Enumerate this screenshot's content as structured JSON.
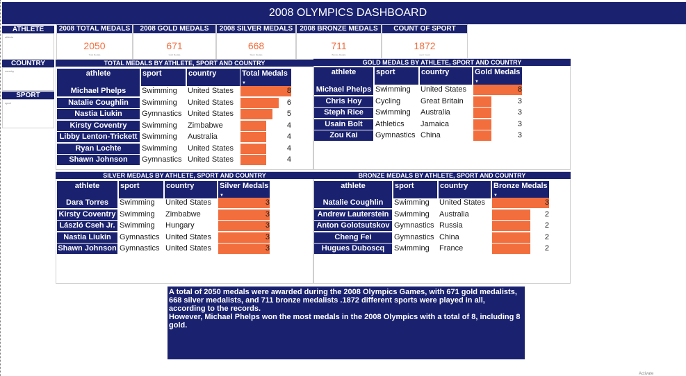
{
  "title": "2008 OLYMPICS DASHBOARD",
  "slicers": {
    "athlete": "ATHLETE",
    "country": "COUNTRY",
    "sport": "SPORT",
    "placeholder": "athlete",
    "country_placeholder": "country",
    "sport_placeholder": "sport"
  },
  "kpis": [
    {
      "label": "2008 TOTAL MEDALS",
      "value": "2050",
      "sub": "Total Medals"
    },
    {
      "label": "2008 GOLD MEDALS",
      "value": "671",
      "sub": "Gold Medals"
    },
    {
      "label": "2008 SILVER MEDALS",
      "value": "668",
      "sub": "Silver Medals"
    },
    {
      "label": "2008 BRONZE MEDALS",
      "value": "711",
      "sub": "Bronze Medals"
    },
    {
      "label": "COUNT OF SPORT",
      "value": "1872",
      "sub": "sport Count"
    }
  ],
  "tables": [
    {
      "title": "TOTAL MEDALS BY ATHLETE, SPORT AND COUNTRY",
      "columns": [
        "athlete",
        "sport",
        "country",
        "Total Medals"
      ],
      "rows": [
        {
          "athlete": "Michael Phelps",
          "sport": "Swimming",
          "country": "United States",
          "value": 8
        },
        {
          "athlete": "Natalie Coughlin",
          "sport": "Swimming",
          "country": "United States",
          "value": 6
        },
        {
          "athlete": "Nastia Liukin",
          "sport": "Gymnastics",
          "country": "United States",
          "value": 5
        },
        {
          "athlete": "Kirsty Coventry",
          "sport": "Swimming",
          "country": "Zimbabwe",
          "value": 4
        },
        {
          "athlete": "Libby Lenton-Trickett",
          "sport": "Swimming",
          "country": "Australia",
          "value": 4
        },
        {
          "athlete": "Ryan Lochte",
          "sport": "Swimming",
          "country": "United States",
          "value": 4
        },
        {
          "athlete": "Shawn Johnson",
          "sport": "Gymnastics",
          "country": "United States",
          "value": 4
        }
      ],
      "max": 8
    },
    {
      "title": "GOLD MEDALS BY ATHLETE, SPORT AND COUNTRY",
      "columns": [
        "athlete",
        "sport",
        "country",
        "Gold Medals"
      ],
      "rows": [
        {
          "athlete": "Michael Phelps",
          "sport": "Swimming",
          "country": "United States",
          "value": 8
        },
        {
          "athlete": "Chris Hoy",
          "sport": "Cycling",
          "country": "Great Britain",
          "value": 3
        },
        {
          "athlete": "Steph Rice",
          "sport": "Swimming",
          "country": "Australia",
          "value": 3
        },
        {
          "athlete": "Usain Bolt",
          "sport": "Athletics",
          "country": "Jamaica",
          "value": 3
        },
        {
          "athlete": "Zou Kai",
          "sport": "Gymnastics",
          "country": "China",
          "value": 3
        }
      ],
      "max": 8
    },
    {
      "title": "SILVER MEDALS BY ATHLETE, SPORT AND COUNTRY",
      "columns": [
        "athlete",
        "sport",
        "country",
        "Silver Medals"
      ],
      "rows": [
        {
          "athlete": "Dara Torres",
          "sport": "Swimming",
          "country": "United States",
          "value": 3
        },
        {
          "athlete": "Kirsty Coventry",
          "sport": "Swimming",
          "country": "Zimbabwe",
          "value": 3
        },
        {
          "athlete": "László Cseh Jr.",
          "sport": "Swimming",
          "country": "Hungary",
          "value": 3
        },
        {
          "athlete": "Nastia Liukin",
          "sport": "Gymnastics",
          "country": "United States",
          "value": 3
        },
        {
          "athlete": "Shawn Johnson",
          "sport": "Gymnastics",
          "country": "United States",
          "value": 3
        }
      ],
      "max": 3
    },
    {
      "title": "BRONZE MEDALS BY ATHLETE, SPORT AND COUNTRY",
      "columns": [
        "athlete",
        "sport",
        "country",
        "Bronze Medals"
      ],
      "rows": [
        {
          "athlete": "Natalie Coughlin",
          "sport": "Swimming",
          "country": "United States",
          "value": 3
        },
        {
          "athlete": "Andrew Lauterstein",
          "sport": "Swimming",
          "country": "Australia",
          "value": 2
        },
        {
          "athlete": "Anton Golotsutskov",
          "sport": "Gymnastics",
          "country": "Russia",
          "value": 2
        },
        {
          "athlete": "Cheng Fei",
          "sport": "Gymnastics",
          "country": "China",
          "value": 2
        },
        {
          "athlete": "Hugues Duboscq",
          "sport": "Swimming",
          "country": "France",
          "value": 2
        }
      ],
      "max": 3
    }
  ],
  "summary": {
    "line1": "A total of 2050 medals were awarded during the 2008 Olympics Games, with 671 gold medalists, 668 silver medalists, and 711 bronze medalists .1872 different sports were played in all, according to the records.",
    "line2": "However, Michael Phelps won the most medals in the 2008 Olympics with a total of 8, including 8 gold."
  },
  "watermark": "Activate",
  "colors": {
    "navy": "#1a2270",
    "accent": "#f26e3d"
  }
}
